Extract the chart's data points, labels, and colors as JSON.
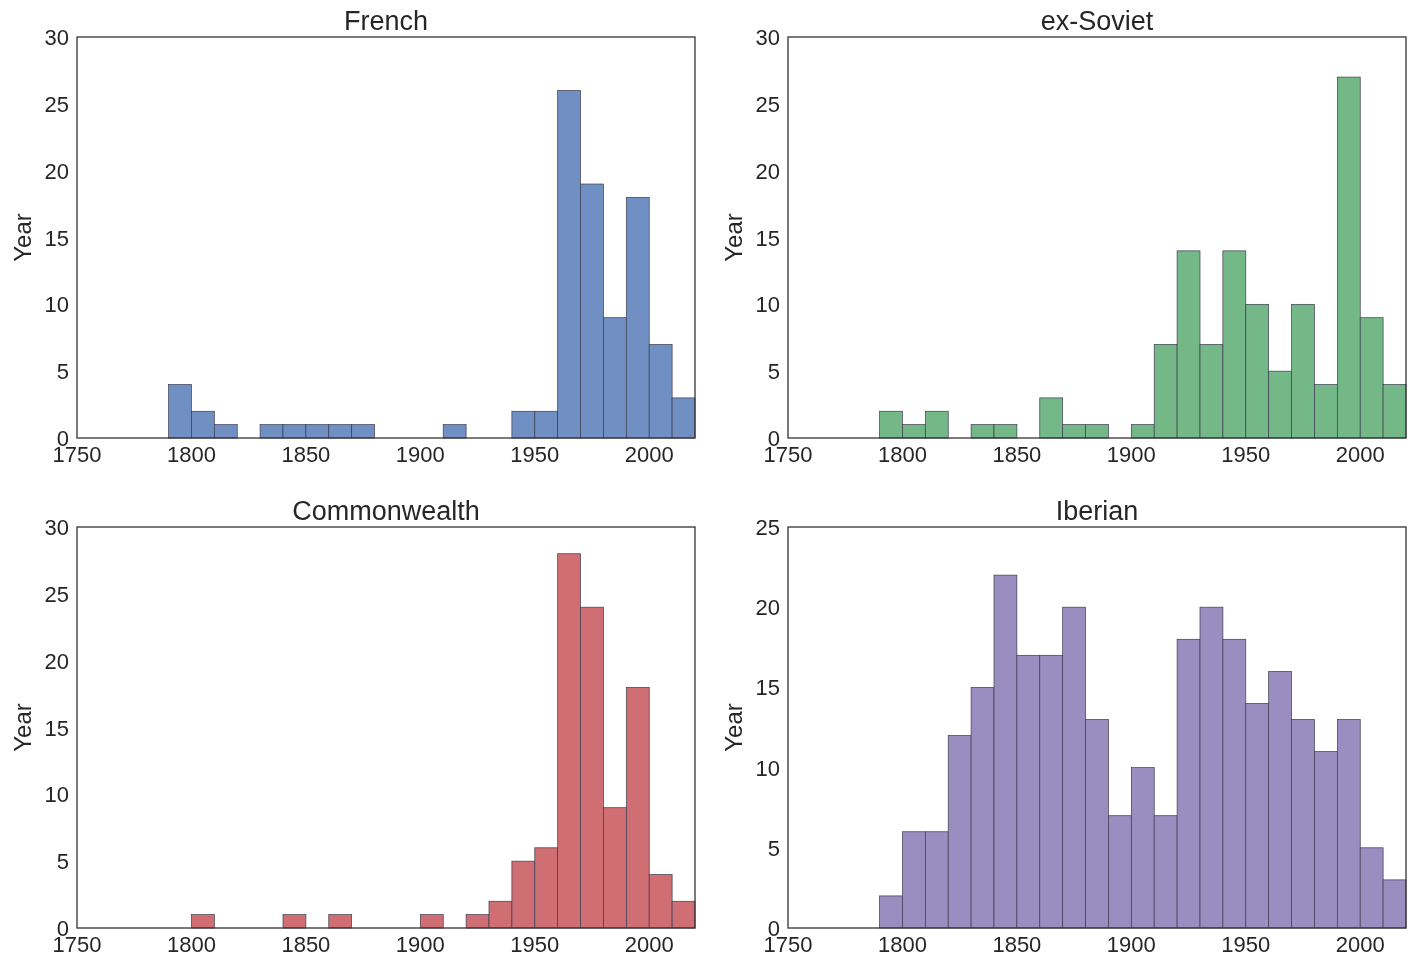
{
  "chart_data": [
    {
      "type": "histogram",
      "title": "French",
      "ylabel": "Year",
      "color": "#7090c3",
      "bins": [
        1790,
        1800,
        1810,
        1820,
        1830,
        1840,
        1850,
        1860,
        1870,
        1880,
        1890,
        1900,
        1910,
        1920,
        1930,
        1940,
        1950,
        1960,
        1970,
        1980,
        1990,
        2000,
        2010,
        2020
      ],
      "values": [
        4,
        2,
        1,
        0,
        1,
        1,
        1,
        1,
        1,
        0,
        0,
        0,
        1,
        0,
        0,
        2,
        2,
        26,
        19,
        9,
        18,
        7,
        3
      ],
      "xlim": [
        1750,
        2020
      ],
      "xticks": [
        1750,
        1800,
        1850,
        1900,
        1950,
        2000
      ],
      "ylim": [
        0,
        30
      ],
      "yticks": [
        0,
        5,
        10,
        15,
        20,
        25,
        30
      ]
    },
    {
      "type": "histogram",
      "title": "ex-Soviet",
      "ylabel": "Year",
      "color": "#75b887",
      "bins": [
        1790,
        1800,
        1810,
        1820,
        1830,
        1840,
        1850,
        1860,
        1870,
        1880,
        1890,
        1900,
        1910,
        1920,
        1930,
        1940,
        1950,
        1960,
        1970,
        1980,
        1990,
        2000,
        2010,
        2020
      ],
      "values": [
        2,
        1,
        2,
        0,
        1,
        1,
        0,
        3,
        1,
        1,
        0,
        1,
        7,
        14,
        7,
        14,
        10,
        5,
        10,
        4,
        27,
        9,
        4
      ],
      "xlim": [
        1750,
        2020
      ],
      "xticks": [
        1750,
        1800,
        1850,
        1900,
        1950,
        2000
      ],
      "ylim": [
        0,
        30
      ],
      "yticks": [
        0,
        5,
        10,
        15,
        20,
        25,
        30
      ]
    },
    {
      "type": "histogram",
      "title": "Commonwealth",
      "ylabel": "Year",
      "color": "#cf6e73",
      "bins": [
        1790,
        1800,
        1810,
        1820,
        1830,
        1840,
        1850,
        1860,
        1870,
        1880,
        1890,
        1900,
        1910,
        1920,
        1930,
        1940,
        1950,
        1960,
        1970,
        1980,
        1990,
        2000,
        2010,
        2020
      ],
      "values": [
        0,
        1,
        0,
        0,
        0,
        1,
        0,
        1,
        0,
        0,
        0,
        1,
        0,
        1,
        2,
        5,
        6,
        28,
        24,
        9,
        18,
        4,
        2
      ],
      "xlim": [
        1750,
        2020
      ],
      "xticks": [
        1750,
        1800,
        1850,
        1900,
        1950,
        2000
      ],
      "ylim": [
        0,
        30
      ],
      "yticks": [
        0,
        5,
        10,
        15,
        20,
        25,
        30
      ]
    },
    {
      "type": "histogram",
      "title": "Iberian",
      "ylabel": "Year",
      "color": "#9a8ec1",
      "bins": [
        1790,
        1800,
        1810,
        1820,
        1830,
        1840,
        1850,
        1860,
        1870,
        1880,
        1890,
        1900,
        1910,
        1920,
        1930,
        1940,
        1950,
        1960,
        1970,
        1980,
        1990,
        2000,
        2010,
        2020
      ],
      "values": [
        2,
        6,
        6,
        12,
        15,
        22,
        17,
        17,
        20,
        13,
        7,
        10,
        7,
        18,
        20,
        18,
        14,
        16,
        13,
        11,
        13,
        5,
        3
      ],
      "xlim": [
        1750,
        2020
      ],
      "xticks": [
        1750,
        1800,
        1850,
        1900,
        1950,
        2000
      ],
      "ylim": [
        0,
        25
      ],
      "yticks": [
        0,
        5,
        10,
        15,
        20,
        25
      ]
    }
  ]
}
